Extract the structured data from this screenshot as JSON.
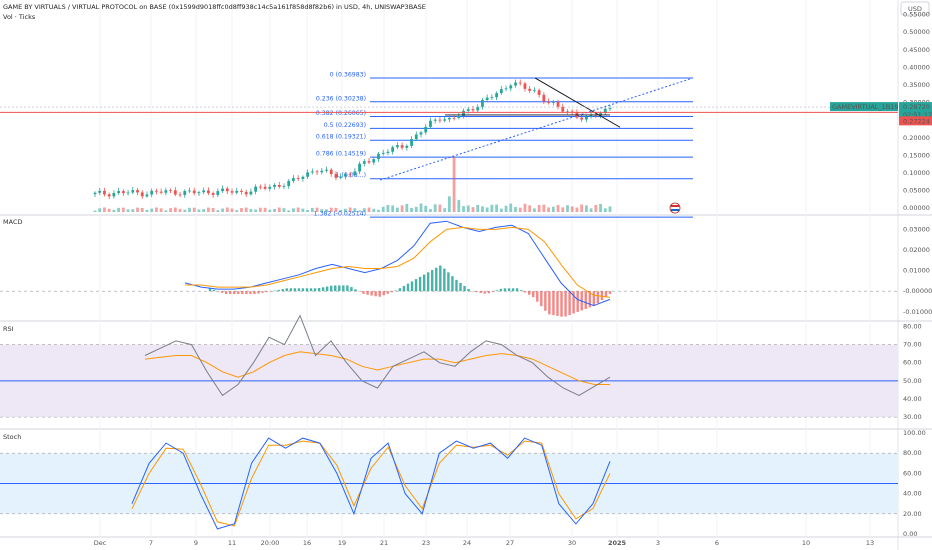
{
  "header": {
    "title": "GAME BY VIRTUALS / VIRTUAL PROTOCOL on BASE (0x1599d9018ffc0d8ff938c14c5a161f858d8f82b6) in USD, 4h, UNISWAP3BASE",
    "sub_indicator": "Vol · Ticks",
    "currency_button": "USD"
  },
  "colors": {
    "up": "#26a69a",
    "down": "#ef5350",
    "fib_line": "#2962ff",
    "price_tag": "#26a69a",
    "current_line": "#ef5350",
    "macd_line": "#2962ff",
    "signal_line": "#ff9800",
    "rsi_line": "#7e57c2",
    "rsi_band": "#ede7f6",
    "stoch_band": "#e3f2fd"
  },
  "panes": {
    "macd": "MACD",
    "rsi": "RSI",
    "stoch": "Stoch"
  },
  "price_tags": {
    "symbol_label": "GAMEVIRTUAL_1B1990 USD",
    "price": "0.28720",
    "countdown": "02:51:17",
    "current": "0.27224"
  },
  "chart_data": {
    "type": "candlestick",
    "x_labels": [
      "Dec",
      "7",
      "9",
      "11",
      "20:00",
      "16",
      "19",
      "21",
      "23",
      "24",
      "27",
      "30",
      "2025",
      "3",
      "6",
      "10",
      "13"
    ],
    "price_axis": {
      "ticks": [
        "0.55000",
        "0.50000",
        "0.45000",
        "0.40000",
        "0.35000",
        "0.30000",
        "0.25000",
        "0.20000",
        "0.15000",
        "0.10000",
        "0.05000",
        "0.00000"
      ],
      "range": [
        -0.005,
        0.58
      ]
    },
    "fib_levels": [
      {
        "label": "0 (0.36983)",
        "value": 0.36983
      },
      {
        "label": "0.236 (0.30238)",
        "value": 0.30238
      },
      {
        "label": "0.382 (0.26065)",
        "value": 0.26065
      },
      {
        "label": "0.5 (0.22693)",
        "value": 0.22693
      },
      {
        "label": "0.618 (0.19321)",
        "value": 0.19321
      },
      {
        "label": "0.786 (0.14519)",
        "value": 0.14519
      },
      {
        "label": "1 (0.08...)",
        "value": 0.0839
      },
      {
        "label": "1.382 (-0.02514)",
        "value": -0.02514
      }
    ],
    "price_path": [
      [
        0.0,
        0.04
      ],
      [
        0.04,
        0.045
      ],
      [
        0.08,
        0.043
      ],
      [
        0.12,
        0.047
      ],
      [
        0.16,
        0.044
      ],
      [
        0.2,
        0.048
      ],
      [
        0.24,
        0.046
      ],
      [
        0.26,
        0.052
      ],
      [
        0.28,
        0.06
      ],
      [
        0.3,
        0.066
      ],
      [
        0.32,
        0.073
      ],
      [
        0.34,
        0.095
      ],
      [
        0.36,
        0.11
      ],
      [
        0.38,
        0.098
      ],
      [
        0.4,
        0.091
      ],
      [
        0.42,
        0.1
      ],
      [
        0.44,
        0.13
      ],
      [
        0.46,
        0.15
      ],
      [
        0.48,
        0.165
      ],
      [
        0.5,
        0.175
      ],
      [
        0.52,
        0.2
      ],
      [
        0.54,
        0.23
      ],
      [
        0.56,
        0.26
      ],
      [
        0.58,
        0.25
      ],
      [
        0.6,
        0.27
      ],
      [
        0.62,
        0.29
      ],
      [
        0.64,
        0.31
      ],
      [
        0.66,
        0.33
      ],
      [
        0.68,
        0.36
      ],
      [
        0.7,
        0.34
      ],
      [
        0.72,
        0.33
      ],
      [
        0.74,
        0.3
      ],
      [
        0.76,
        0.28
      ],
      [
        0.78,
        0.27
      ],
      [
        0.8,
        0.25
      ],
      [
        0.82,
        0.27
      ],
      [
        0.84,
        0.287
      ]
    ],
    "macd_axis": {
      "ticks": [
        "0.03000",
        "0.02000",
        "0.01000",
        "-0.00000",
        "-0.01000"
      ],
      "range": [
        -0.014,
        0.037
      ]
    },
    "macd_series": [
      {
        "name": "MACD",
        "values": [
          0.004,
          0.002,
          0.001,
          0.001,
          0.002,
          0.004,
          0.006,
          0.008,
          0.011,
          0.013,
          0.011,
          0.009,
          0.011,
          0.015,
          0.022,
          0.033,
          0.034,
          0.031,
          0.029,
          0.031,
          0.032,
          0.028,
          0.016,
          0.004,
          -0.004,
          -0.007,
          -0.004
        ]
      },
      {
        "name": "Signal",
        "values": [
          0.003,
          0.003,
          0.002,
          0.002,
          0.002,
          0.003,
          0.005,
          0.007,
          0.009,
          0.011,
          0.012,
          0.011,
          0.011,
          0.012,
          0.016,
          0.024,
          0.03,
          0.031,
          0.03,
          0.03,
          0.031,
          0.03,
          0.024,
          0.013,
          0.003,
          -0.002,
          -0.003
        ]
      }
    ],
    "rsi_axis": {
      "ticks": [
        "80.00",
        "70.00",
        "60.00",
        "50.00",
        "40.00",
        "30.00"
      ],
      "range": [
        24,
        83
      ],
      "band": [
        30,
        70
      ],
      "mid": 50
    },
    "rsi_values": [
      64,
      68,
      72,
      70,
      55,
      42,
      48,
      60,
      74,
      70,
      86,
      64,
      72,
      60,
      50,
      46,
      58,
      62,
      66,
      60,
      58,
      66,
      72,
      70,
      64,
      60,
      52,
      46,
      42,
      47,
      52
    ],
    "rsi_ma": [
      62,
      63,
      64,
      64,
      60,
      55,
      52,
      55,
      60,
      64,
      66,
      65,
      64,
      62,
      58,
      56,
      58,
      60,
      62,
      62,
      60,
      62,
      64,
      65,
      64,
      62,
      58,
      54,
      50,
      48,
      48
    ],
    "stoch_axis": {
      "ticks": [
        "100.00",
        "80.00",
        "60.00",
        "40.00",
        "20.00",
        "0.00"
      ],
      "range": [
        -2,
        104
      ],
      "band": [
        20,
        80
      ],
      "mid": 50
    },
    "stoch_k": [
      30,
      70,
      90,
      80,
      40,
      5,
      10,
      70,
      95,
      85,
      95,
      90,
      60,
      20,
      75,
      90,
      40,
      20,
      80,
      92,
      85,
      90,
      75,
      95,
      88,
      30,
      10,
      30,
      72
    ],
    "stoch_d": [
      25,
      60,
      85,
      84,
      50,
      12,
      8,
      55,
      88,
      88,
      92,
      90,
      68,
      28,
      65,
      86,
      48,
      25,
      70,
      88,
      86,
      88,
      78,
      92,
      90,
      40,
      15,
      25,
      60
    ]
  }
}
